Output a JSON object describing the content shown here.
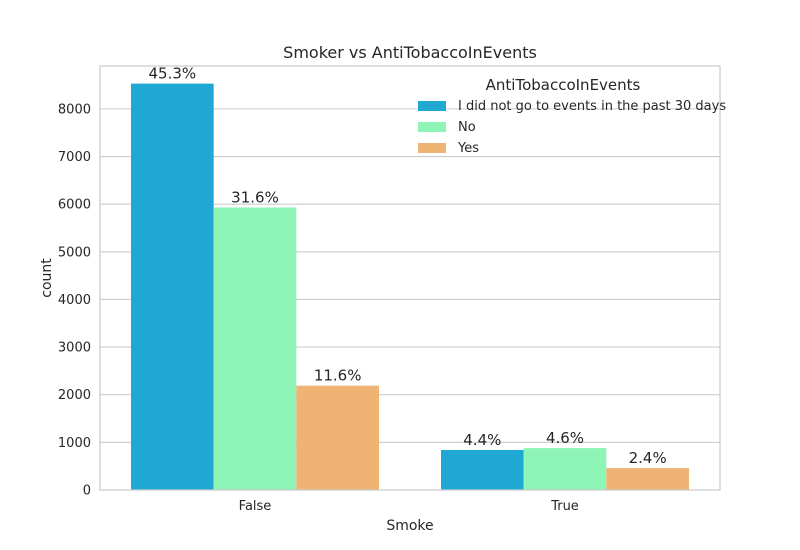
{
  "chart_data": {
    "type": "bar",
    "title": "Smoker vs AntiTobaccoInEvents",
    "xlabel": "Smoke",
    "ylabel": "count",
    "categories": [
      "False",
      "True"
    ],
    "ylim": [
      0,
      8900
    ],
    "yticks": [
      0,
      1000,
      2000,
      3000,
      4000,
      5000,
      6000,
      7000,
      8000
    ],
    "grid": true,
    "legend": {
      "title": "AntiTobaccoInEvents",
      "placement": "top-right"
    },
    "series": [
      {
        "name": "I did not go to events in the past 30 days",
        "color": "#1fa8d3",
        "values": [
          8530,
          840
        ],
        "labels": [
          "45.3%",
          "4.4%"
        ]
      },
      {
        "name": "No",
        "color": "#8ff5b6",
        "values": [
          5930,
          880
        ],
        "labels": [
          "31.6%",
          "4.6%"
        ]
      },
      {
        "name": "Yes",
        "color": "#efb373",
        "values": [
          2190,
          460
        ],
        "labels": [
          "11.6%",
          "2.4%"
        ]
      }
    ]
  }
}
